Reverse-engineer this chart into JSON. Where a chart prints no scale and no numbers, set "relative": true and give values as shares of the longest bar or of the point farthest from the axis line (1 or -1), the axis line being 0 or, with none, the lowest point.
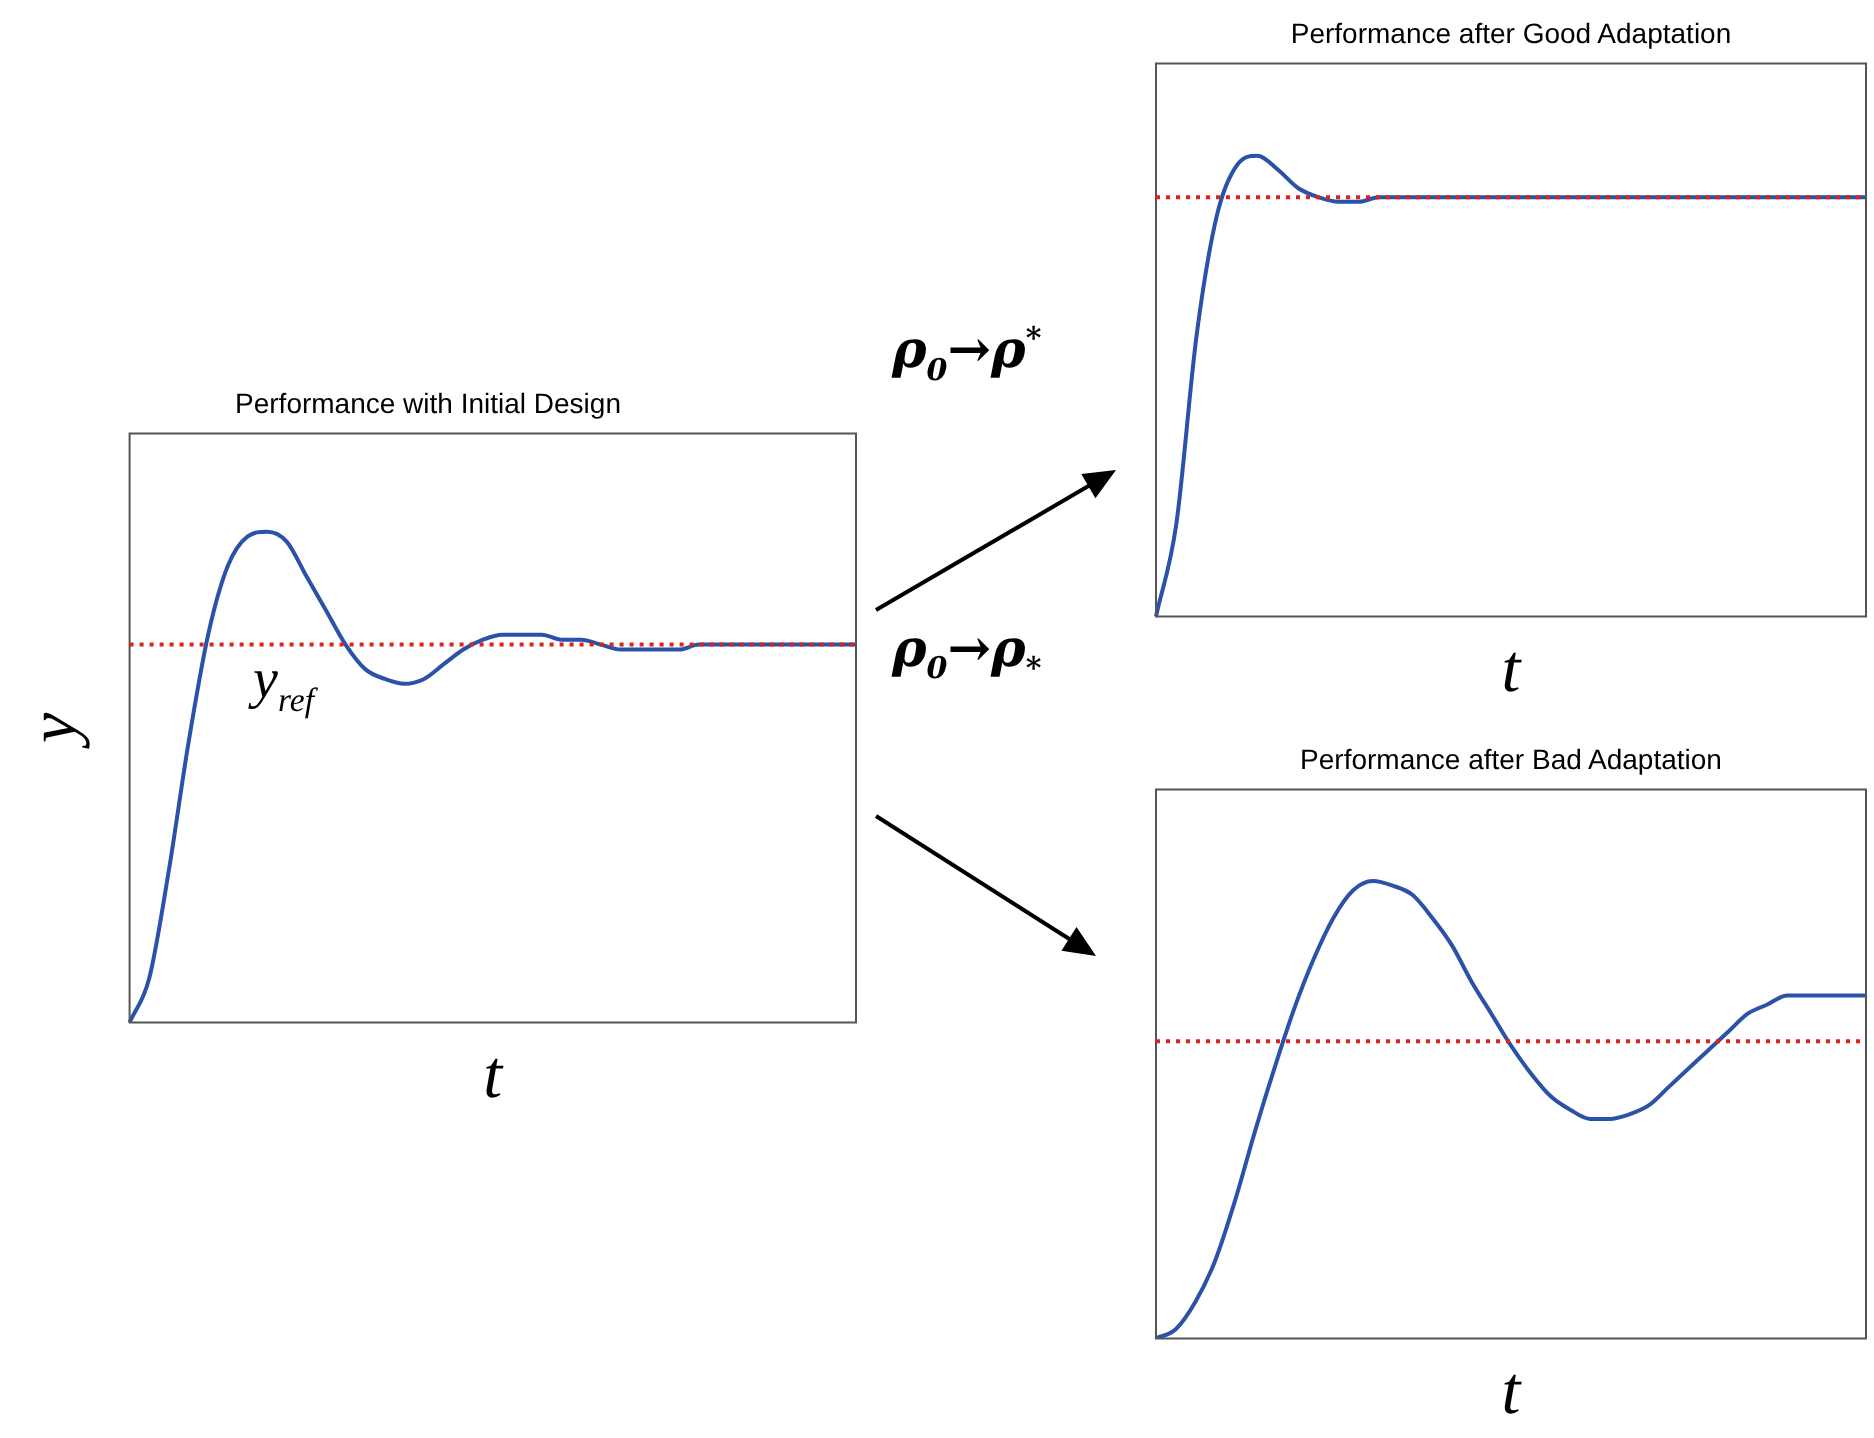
{
  "chart_data": [
    {
      "type": "line",
      "title": "Performance with Initial Design",
      "xlabel": "t",
      "ylabel": "y",
      "relative": true,
      "marker": "none",
      "categories": [
        null,
        null,
        null,
        null,
        null,
        null,
        null,
        null,
        null,
        null,
        null,
        null,
        null,
        null,
        null,
        null,
        null,
        null,
        null,
        null,
        null,
        null,
        null,
        null,
        null,
        null,
        null,
        null,
        null,
        null,
        null,
        null,
        null,
        null,
        null,
        null,
        null,
        null
      ],
      "series": [
        {
          "color": "#2a52a8",
          "values": [
            0,
            0.09,
            0.31,
            0.57,
            0.79,
            0.93,
            0.99,
            1,
            0.98,
            0.91,
            0.84,
            0.77,
            0.72,
            0.7,
            0.69,
            0.7,
            0.73,
            0.76,
            0.78,
            0.79,
            0.79,
            0.79,
            0.78,
            0.78,
            0.77,
            0.76,
            0.76,
            0.76,
            0.76,
            0.77,
            0.77,
            0.77,
            0.77,
            0.77,
            0.77,
            0.77,
            0.77,
            0.77
          ]
        }
      ],
      "ref_lines": [
        {
          "axis": "y",
          "value": 0.77,
          "label": "y$_{ref}$",
          "color": "#e0201b",
          "line_style": "dotted"
        }
      ]
    },
    {
      "type": "line",
      "title": "Performance after Good Adaptation",
      "xlabel": "t",
      "relative": true,
      "marker": "none",
      "categories": [
        null,
        null,
        null,
        null,
        null,
        null,
        null,
        null,
        null,
        null,
        null,
        null,
        null,
        null,
        null,
        null,
        null,
        null,
        null,
        null,
        null,
        null,
        null,
        null,
        null,
        null,
        null,
        null,
        null,
        null,
        null,
        null,
        null,
        null,
        null,
        null
      ],
      "series": [
        {
          "color": "#2a52a8",
          "values": [
            0,
            0.2,
            0.61,
            0.87,
            0.98,
            1,
            0.97,
            0.93,
            0.91,
            0.9,
            0.9,
            0.91,
            0.91,
            0.91,
            0.91,
            0.91,
            0.91,
            0.91,
            0.91,
            0.91,
            0.91,
            0.91,
            0.91,
            0.91,
            0.91,
            0.91,
            0.91,
            0.91,
            0.91,
            0.91,
            0.91,
            0.91,
            0.91,
            0.91,
            0.91,
            0.91
          ]
        }
      ],
      "ref_lines": [
        {
          "axis": "y",
          "value": 0.91,
          "color": "#e0201b",
          "line_style": "dotted"
        }
      ],
      "annotations": [
        "ρ$_{0}$→ρ$^{*}$"
      ]
    },
    {
      "type": "line",
      "title": "Performance after Bad Adaptation",
      "xlabel": "t",
      "relative": true,
      "marker": "none",
      "categories": [
        null,
        null,
        null,
        null,
        null,
        null,
        null,
        null,
        null,
        null,
        null,
        null,
        null,
        null,
        null,
        null,
        null,
        null,
        null,
        null,
        null,
        null,
        null,
        null,
        null,
        null,
        null,
        null,
        null,
        null,
        null,
        null,
        null,
        null,
        null,
        null,
        null
      ],
      "series": [
        {
          "color": "#2a52a8",
          "values": [
            0,
            0.02,
            0.08,
            0.17,
            0.3,
            0.45,
            0.59,
            0.72,
            0.83,
            0.92,
            0.98,
            1,
            0.99,
            0.97,
            0.92,
            0.86,
            0.78,
            0.71,
            0.64,
            0.58,
            0.53,
            0.5,
            0.48,
            0.48,
            0.49,
            0.51,
            0.55,
            0.59,
            0.63,
            0.67,
            0.71,
            0.73,
            0.75,
            0.75,
            0.75,
            0.75,
            0.75
          ]
        }
      ],
      "ref_lines": [
        {
          "axis": "y",
          "value": 0.65,
          "color": "#e0201b",
          "line_style": "dotted"
        }
      ],
      "annotations": [
        "ρ$_{0}$→ρ$_{*}$"
      ]
    }
  ]
}
